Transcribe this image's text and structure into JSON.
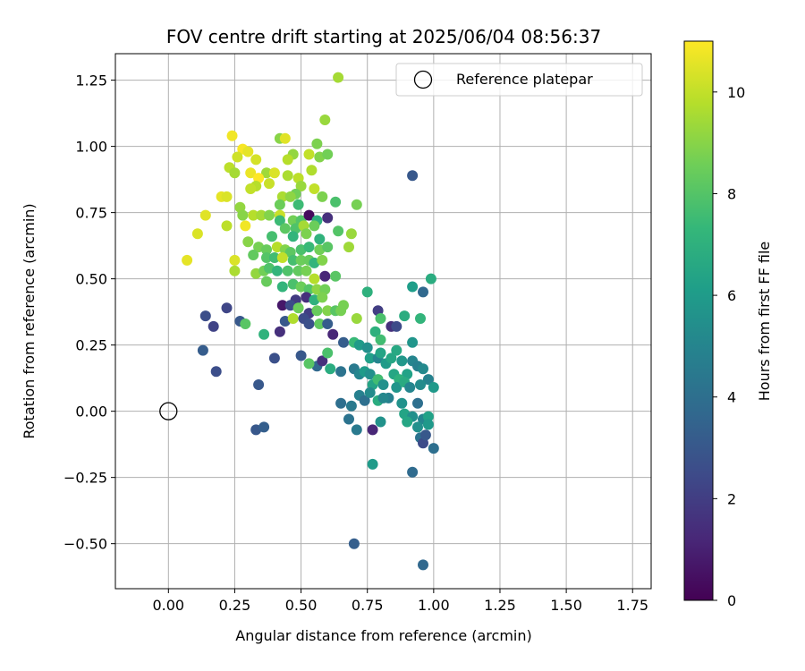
{
  "chart_data": {
    "type": "scatter",
    "title": "FOV centre drift starting at 2025/06/04 08:56:37",
    "xlabel": "Angular distance from reference (arcmin)",
    "ylabel": "Rotation from reference (arcmin)",
    "xlim": [
      -0.2,
      1.82
    ],
    "ylim": [
      -0.67,
      1.35
    ],
    "xticks": [
      0.0,
      0.25,
      0.5,
      0.75,
      1.0,
      1.25,
      1.5,
      1.75
    ],
    "xtick_labels": [
      "0.00",
      "0.25",
      "0.50",
      "0.75",
      "1.00",
      "1.25",
      "1.50",
      "1.75"
    ],
    "yticks": [
      -0.5,
      -0.25,
      0.0,
      0.25,
      0.5,
      0.75,
      1.0,
      1.25
    ],
    "ytick_labels": [
      "−0.50",
      "−0.25",
      "0.00",
      "0.25",
      "0.50",
      "0.75",
      "1.00",
      "1.25"
    ],
    "grid": true,
    "legend": {
      "placement": "upper-right",
      "entries": [
        "Reference platepar"
      ]
    },
    "reference_point": {
      "x": 0.0,
      "y": 0.0,
      "label": "Reference platepar"
    },
    "colorbar": {
      "label": "Hours from first FF file",
      "colormap": "viridis",
      "range": [
        0,
        11
      ],
      "ticks": [
        0,
        2,
        4,
        6,
        8,
        10
      ],
      "tick_labels": [
        "0",
        "2",
        "4",
        "6",
        "8",
        "10"
      ]
    },
    "series": [
      {
        "points": [
          [
            0.92,
            0.89,
            3.0
          ],
          [
            0.64,
            1.26,
            9.5
          ],
          [
            0.59,
            1.1,
            9.3
          ],
          [
            0.24,
            1.04,
            10.8
          ],
          [
            0.42,
            1.03,
            9.0
          ],
          [
            0.44,
            1.03,
            10.5
          ],
          [
            0.56,
            1.01,
            8.8
          ],
          [
            0.28,
            0.99,
            10.9
          ],
          [
            0.3,
            0.98,
            10.6
          ],
          [
            0.26,
            0.96,
            10.2
          ],
          [
            0.33,
            0.95,
            10.3
          ],
          [
            0.47,
            0.97,
            9.2
          ],
          [
            0.53,
            0.97,
            10.0
          ],
          [
            0.45,
            0.95,
            9.8
          ],
          [
            0.57,
            0.96,
            8.9
          ],
          [
            0.6,
            0.97,
            8.6
          ],
          [
            0.23,
            0.92,
            9.9
          ],
          [
            0.25,
            0.9,
            9.5
          ],
          [
            0.31,
            0.9,
            10.7
          ],
          [
            0.37,
            0.9,
            9.4
          ],
          [
            0.4,
            0.9,
            10.4
          ],
          [
            0.45,
            0.89,
            9.6
          ],
          [
            0.54,
            0.91,
            9.7
          ],
          [
            0.34,
            0.88,
            11.0
          ],
          [
            0.38,
            0.86,
            10.1
          ],
          [
            0.49,
            0.88,
            9.9
          ],
          [
            0.33,
            0.85,
            9.8
          ],
          [
            0.31,
            0.84,
            10.0
          ],
          [
            0.5,
            0.85,
            9.3
          ],
          [
            0.48,
            0.82,
            8.6
          ],
          [
            0.55,
            0.84,
            10.0
          ],
          [
            0.58,
            0.81,
            8.8
          ],
          [
            0.2,
            0.81,
            10.6
          ],
          [
            0.22,
            0.81,
            10.4
          ],
          [
            0.43,
            0.81,
            9.6
          ],
          [
            0.46,
            0.81,
            9.1
          ],
          [
            0.42,
            0.78,
            8.5
          ],
          [
            0.49,
            0.78,
            7.5
          ],
          [
            0.63,
            0.79,
            7.8
          ],
          [
            0.71,
            0.78,
            8.7
          ],
          [
            0.27,
            0.77,
            9.2
          ],
          [
            0.28,
            0.74,
            9.0
          ],
          [
            0.32,
            0.74,
            9.8
          ],
          [
            0.35,
            0.74,
            9.5
          ],
          [
            0.38,
            0.74,
            8.9
          ],
          [
            0.14,
            0.74,
            10.5
          ],
          [
            0.42,
            0.74,
            10.1
          ],
          [
            0.47,
            0.72,
            8.6
          ],
          [
            0.5,
            0.72,
            8.0
          ],
          [
            0.53,
            0.74,
            0.3
          ],
          [
            0.56,
            0.72,
            7.0
          ],
          [
            0.6,
            0.73,
            1.5
          ],
          [
            0.22,
            0.7,
            9.9
          ],
          [
            0.29,
            0.7,
            10.8
          ],
          [
            0.42,
            0.72,
            7.5
          ],
          [
            0.44,
            0.69,
            8.2
          ],
          [
            0.48,
            0.69,
            7.9
          ],
          [
            0.51,
            0.7,
            9.5
          ],
          [
            0.55,
            0.7,
            8.5
          ],
          [
            0.11,
            0.67,
            10.4
          ],
          [
            0.39,
            0.66,
            7.7
          ],
          [
            0.47,
            0.66,
            7.2
          ],
          [
            0.52,
            0.67,
            8.8
          ],
          [
            0.57,
            0.65,
            7.1
          ],
          [
            0.64,
            0.68,
            8.0
          ],
          [
            0.69,
            0.67,
            9.3
          ],
          [
            0.3,
            0.64,
            9.0
          ],
          [
            0.34,
            0.62,
            8.7
          ],
          [
            0.37,
            0.61,
            8.4
          ],
          [
            0.41,
            0.62,
            9.8
          ],
          [
            0.44,
            0.61,
            8.9
          ],
          [
            0.46,
            0.6,
            8.2
          ],
          [
            0.5,
            0.61,
            7.8
          ],
          [
            0.53,
            0.62,
            7.4
          ],
          [
            0.57,
            0.61,
            8.6
          ],
          [
            0.6,
            0.62,
            8.1
          ],
          [
            0.68,
            0.62,
            9.4
          ],
          [
            0.07,
            0.57,
            10.6
          ],
          [
            0.25,
            0.57,
            10.4
          ],
          [
            0.32,
            0.59,
            8.3
          ],
          [
            0.37,
            0.58,
            8.0
          ],
          [
            0.4,
            0.58,
            7.6
          ],
          [
            0.43,
            0.58,
            10.0
          ],
          [
            0.47,
            0.57,
            7.7
          ],
          [
            0.5,
            0.57,
            8.5
          ],
          [
            0.53,
            0.57,
            8.4
          ],
          [
            0.55,
            0.56,
            7.2
          ],
          [
            0.58,
            0.57,
            8.9
          ],
          [
            0.25,
            0.53,
            9.6
          ],
          [
            0.33,
            0.52,
            9.2
          ],
          [
            0.36,
            0.53,
            8.6
          ],
          [
            0.38,
            0.54,
            7.9
          ],
          [
            0.41,
            0.53,
            7.2
          ],
          [
            0.45,
            0.53,
            7.9
          ],
          [
            0.49,
            0.53,
            8.3
          ],
          [
            0.52,
            0.53,
            8.7
          ],
          [
            0.55,
            0.5,
            9.8
          ],
          [
            0.59,
            0.51,
            1.2
          ],
          [
            0.63,
            0.51,
            8.1
          ],
          [
            0.43,
            0.47,
            7.2
          ],
          [
            0.47,
            0.48,
            7.8
          ],
          [
            0.5,
            0.47,
            8.5
          ],
          [
            0.53,
            0.46,
            8.0
          ],
          [
            0.56,
            0.46,
            9.1
          ],
          [
            0.59,
            0.46,
            8.6
          ],
          [
            0.37,
            0.49,
            8.4
          ],
          [
            0.52,
            0.43,
            1.5
          ],
          [
            0.55,
            0.42,
            7.0
          ],
          [
            0.58,
            0.43,
            8.8
          ],
          [
            0.48,
            0.42,
            1.9
          ],
          [
            0.43,
            0.4,
            0.7
          ],
          [
            0.46,
            0.4,
            2.5
          ],
          [
            0.49,
            0.39,
            8.5
          ],
          [
            0.53,
            0.37,
            2.0
          ],
          [
            0.56,
            0.38,
            8.4
          ],
          [
            0.6,
            0.38,
            8.9
          ],
          [
            0.63,
            0.38,
            8.1
          ],
          [
            0.65,
            0.38,
            8.7
          ],
          [
            0.14,
            0.36,
            2.6
          ],
          [
            0.17,
            0.32,
            2.2
          ],
          [
            0.22,
            0.39,
            2.3
          ],
          [
            0.27,
            0.34,
            3.0
          ],
          [
            0.29,
            0.33,
            8.1
          ],
          [
            0.44,
            0.34,
            3.0
          ],
          [
            0.47,
            0.35,
            9.7
          ],
          [
            0.51,
            0.35,
            2.5
          ],
          [
            0.53,
            0.33,
            2.7
          ],
          [
            0.57,
            0.33,
            8.3
          ],
          [
            0.6,
            0.33,
            3.2
          ],
          [
            0.66,
            0.4,
            8.7
          ],
          [
            0.71,
            0.35,
            9.3
          ],
          [
            0.75,
            0.45,
            7.0
          ],
          [
            0.79,
            0.38,
            2.0
          ],
          [
            0.8,
            0.35,
            7.8
          ],
          [
            0.84,
            0.32,
            1.5
          ],
          [
            0.86,
            0.32,
            2.5
          ],
          [
            0.89,
            0.36,
            6.8
          ],
          [
            0.95,
            0.35,
            7.2
          ],
          [
            0.99,
            0.5,
            6.8
          ],
          [
            0.92,
            0.47,
            6.1
          ],
          [
            0.96,
            0.45,
            3.7
          ],
          [
            0.36,
            0.29,
            7.1
          ],
          [
            0.42,
            0.3,
            1.5
          ],
          [
            0.62,
            0.29,
            1.2
          ],
          [
            0.66,
            0.26,
            3.2
          ],
          [
            0.7,
            0.26,
            7.4
          ],
          [
            0.72,
            0.25,
            6.0
          ],
          [
            0.75,
            0.24,
            5.5
          ],
          [
            0.78,
            0.3,
            7.0
          ],
          [
            0.8,
            0.27,
            7.6
          ],
          [
            0.76,
            0.2,
            6.2
          ],
          [
            0.13,
            0.23,
            3.2
          ],
          [
            0.18,
            0.15,
            2.6
          ],
          [
            0.4,
            0.2,
            2.7
          ],
          [
            0.5,
            0.21,
            3.0
          ],
          [
            0.56,
            0.17,
            3.7
          ],
          [
            0.58,
            0.19,
            1.5
          ],
          [
            0.6,
            0.22,
            7.8
          ],
          [
            0.61,
            0.16,
            6.8
          ],
          [
            0.53,
            0.18,
            8.1
          ],
          [
            0.65,
            0.15,
            4.2
          ],
          [
            0.7,
            0.16,
            4.5
          ],
          [
            0.72,
            0.14,
            5.0
          ],
          [
            0.74,
            0.15,
            6.0
          ],
          [
            0.76,
            0.14,
            5.5
          ],
          [
            0.79,
            0.2,
            5.0
          ],
          [
            0.8,
            0.22,
            6.4
          ],
          [
            0.82,
            0.18,
            6.0
          ],
          [
            0.84,
            0.2,
            6.5
          ],
          [
            0.86,
            0.23,
            6.6
          ],
          [
            0.88,
            0.19,
            5.8
          ],
          [
            0.9,
            0.14,
            6.3
          ],
          [
            0.92,
            0.19,
            5.0
          ],
          [
            0.94,
            0.17,
            4.8
          ],
          [
            0.96,
            0.16,
            5.2
          ],
          [
            0.98,
            0.12,
            4.9
          ],
          [
            0.92,
            0.26,
            5.7
          ],
          [
            0.85,
            0.14,
            6.5
          ],
          [
            0.87,
            0.12,
            7.0
          ],
          [
            0.77,
            0.1,
            6.4
          ],
          [
            0.79,
            0.12,
            7.6
          ],
          [
            0.81,
            0.1,
            5.5
          ],
          [
            0.83,
            0.05,
            4.8
          ],
          [
            0.86,
            0.09,
            5.7
          ],
          [
            0.89,
            0.11,
            6.7
          ],
          [
            0.91,
            0.09,
            5.0
          ],
          [
            0.95,
            0.1,
            5.3
          ],
          [
            1.0,
            0.09,
            5.9
          ],
          [
            0.34,
            0.1,
            3.0
          ],
          [
            0.65,
            0.03,
            4.0
          ],
          [
            0.69,
            0.02,
            4.5
          ],
          [
            0.72,
            0.06,
            4.8
          ],
          [
            0.74,
            0.04,
            4.0
          ],
          [
            0.76,
            0.07,
            5.3
          ],
          [
            0.79,
            0.04,
            6.8
          ],
          [
            0.81,
            0.05,
            5.1
          ],
          [
            0.88,
            0.03,
            5.6
          ],
          [
            0.94,
            0.03,
            4.0
          ],
          [
            0.89,
            -0.01,
            6.4
          ],
          [
            0.92,
            -0.02,
            5.5
          ],
          [
            0.96,
            -0.03,
            5.0
          ],
          [
            0.98,
            -0.02,
            6.3
          ],
          [
            0.98,
            -0.05,
            5.9
          ],
          [
            0.68,
            -0.03,
            4.2
          ],
          [
            0.8,
            -0.04,
            5.6
          ],
          [
            0.9,
            -0.04,
            6.5
          ],
          [
            0.94,
            -0.06,
            5.5
          ],
          [
            0.95,
            -0.1,
            4.2
          ],
          [
            0.96,
            -0.12,
            2.5
          ],
          [
            0.97,
            -0.09,
            3.0
          ],
          [
            1.0,
            -0.14,
            4.0
          ],
          [
            0.71,
            -0.07,
            4.5
          ],
          [
            0.77,
            -0.07,
            1.2
          ],
          [
            0.33,
            -0.07,
            3.0
          ],
          [
            0.36,
            -0.06,
            3.3
          ],
          [
            0.77,
            -0.2,
            6.0
          ],
          [
            0.92,
            -0.23,
            3.8
          ],
          [
            0.7,
            -0.5,
            3.3
          ],
          [
            0.96,
            -0.58,
            3.7
          ]
        ]
      }
    ]
  }
}
